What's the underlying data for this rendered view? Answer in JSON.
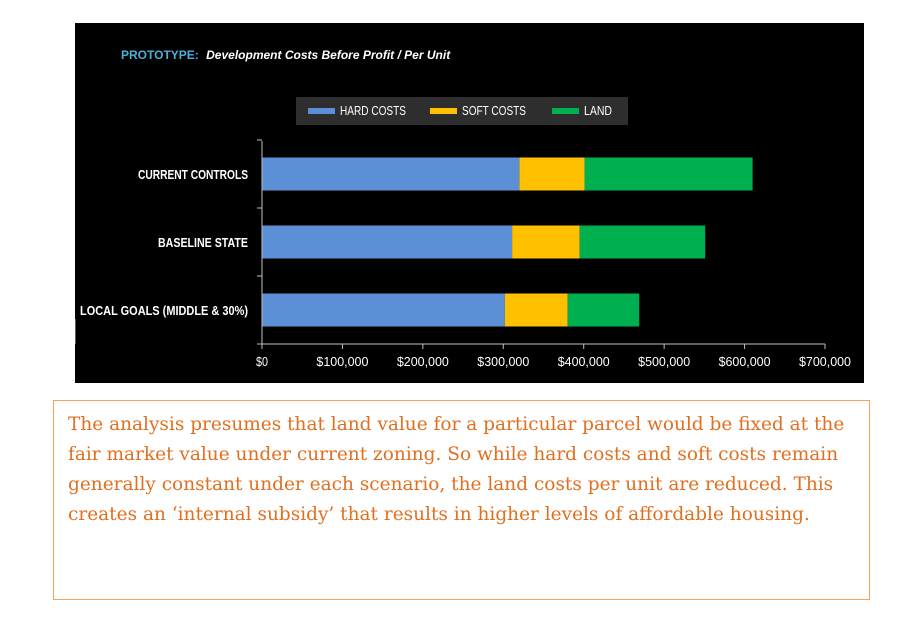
{
  "chart_data": {
    "type": "bar",
    "orientation": "horizontal",
    "stacked": true,
    "title_prefix": "PROTOTYPE:",
    "title": "Development Costs Before Profit / Per Unit",
    "categories": [
      "CURRENT CONTROLS",
      "BASELINE STATE",
      "LOCAL GOALS (MIDDLE & 30%)"
    ],
    "series": [
      {
        "name": "HARD COSTS",
        "color": "#5b8fd6",
        "values": [
          320000,
          311000,
          302000
        ]
      },
      {
        "name": "SOFT COSTS",
        "color": "#ffc000",
        "values": [
          81000,
          84000,
          78000
        ]
      },
      {
        "name": "LAND",
        "color": "#00b050",
        "values": [
          209000,
          156000,
          89000
        ]
      }
    ],
    "xlim": [
      0,
      700000
    ],
    "xticks": [
      0,
      100000,
      200000,
      300000,
      400000,
      500000,
      600000,
      700000
    ],
    "xtick_labels": [
      "$0",
      "$100,000",
      "$200,000",
      "$300,000",
      "$400,000",
      "$500,000",
      "$600,000",
      "$700,000"
    ],
    "grid": false,
    "legend_position": "top",
    "colors": {
      "background": "#000000",
      "title_prefix": "#4ab0d9",
      "text": "#ffffff",
      "axis": "#bfbfbf",
      "legend_bg": "#2e2e2e"
    }
  },
  "note": {
    "text": "The analysis presumes that land value for a particular parcel would be fixed at the fair market value under current zoning. So while hard costs and soft costs remain generally constant under each scenario, the land costs per unit are reduced. This creates an ‘internal subsidy’ that results in higher levels of affordable housing.",
    "color": "#e07020",
    "border_color": "#f5a15a"
  }
}
